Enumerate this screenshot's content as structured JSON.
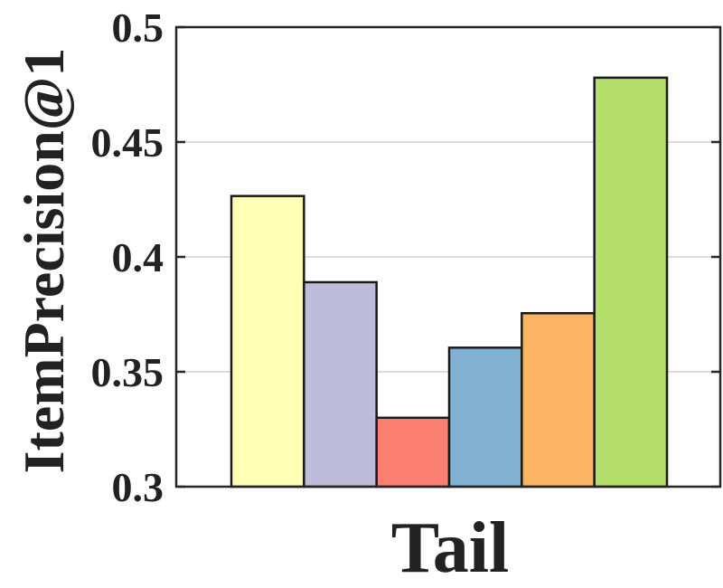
{
  "chart_data": {
    "type": "bar",
    "categories": [
      "Tail"
    ],
    "series": [
      {
        "values": [
          0.4265
        ],
        "color": "#FFFFB3"
      },
      {
        "values": [
          0.389
        ],
        "color": "#BEBADA"
      },
      {
        "values": [
          0.33
        ],
        "color": "#FB8072"
      },
      {
        "values": [
          0.3605
        ],
        "color": "#80B1D3"
      },
      {
        "values": [
          0.3755
        ],
        "color": "#FDB462"
      },
      {
        "values": [
          0.478
        ],
        "color": "#B3DE69"
      }
    ],
    "xlabel": "Tail",
    "ylabel": "ItemPrecision@1",
    "ylim": [
      0.3,
      0.5
    ],
    "yticks": [
      {
        "value": 0.3,
        "label": "0.3"
      },
      {
        "value": 0.35,
        "label": "0.35"
      },
      {
        "value": 0.4,
        "label": "0.4"
      },
      {
        "value": 0.45,
        "label": "0.45"
      },
      {
        "value": 0.5,
        "label": "0.5"
      }
    ],
    "grid": true,
    "legend": "none"
  }
}
